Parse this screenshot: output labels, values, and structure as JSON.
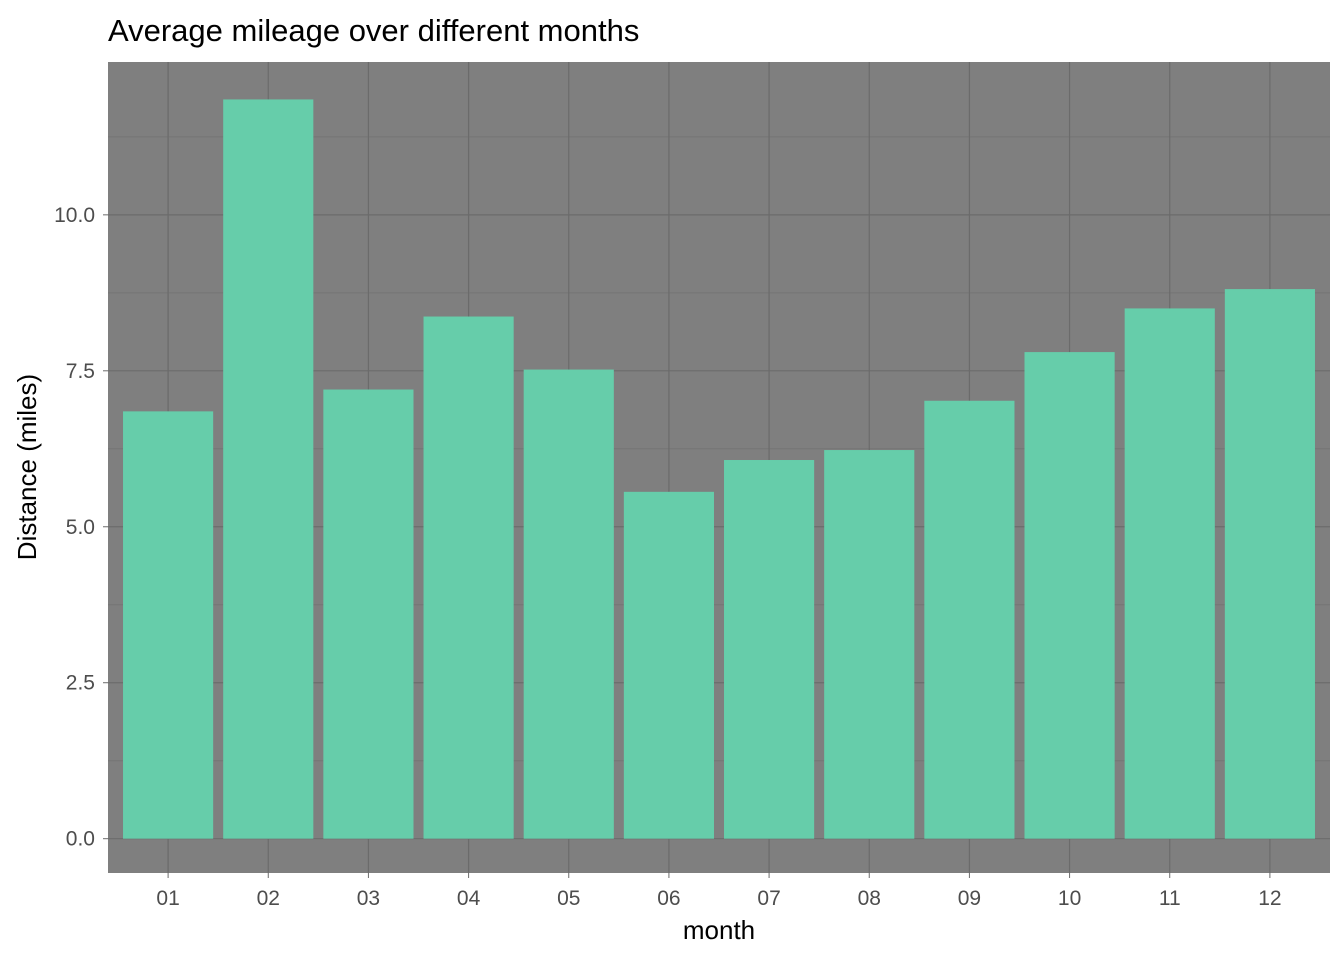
{
  "chart_data": {
    "type": "bar",
    "title": "Average mileage over different months",
    "xlabel": "month",
    "ylabel": "Distance (miles)",
    "categories": [
      "01",
      "02",
      "03",
      "04",
      "05",
      "06",
      "07",
      "08",
      "09",
      "10",
      "11",
      "12"
    ],
    "values": [
      6.85,
      11.85,
      7.2,
      8.37,
      7.52,
      5.56,
      6.07,
      6.23,
      7.02,
      7.8,
      8.5,
      8.81
    ],
    "ylim": [
      -0.55,
      12.45
    ],
    "yticks": [
      0.0,
      2.5,
      5.0,
      7.5,
      10.0
    ],
    "ytick_labels": [
      "0.0",
      "2.5",
      "5.0",
      "7.5",
      "10.0"
    ],
    "grid": true,
    "legend": "none",
    "colors": {
      "bar": "#66cdaa",
      "panel": "#7f7f7f",
      "grid_major": "#6b6b6b",
      "grid_minor": "#757575"
    }
  }
}
